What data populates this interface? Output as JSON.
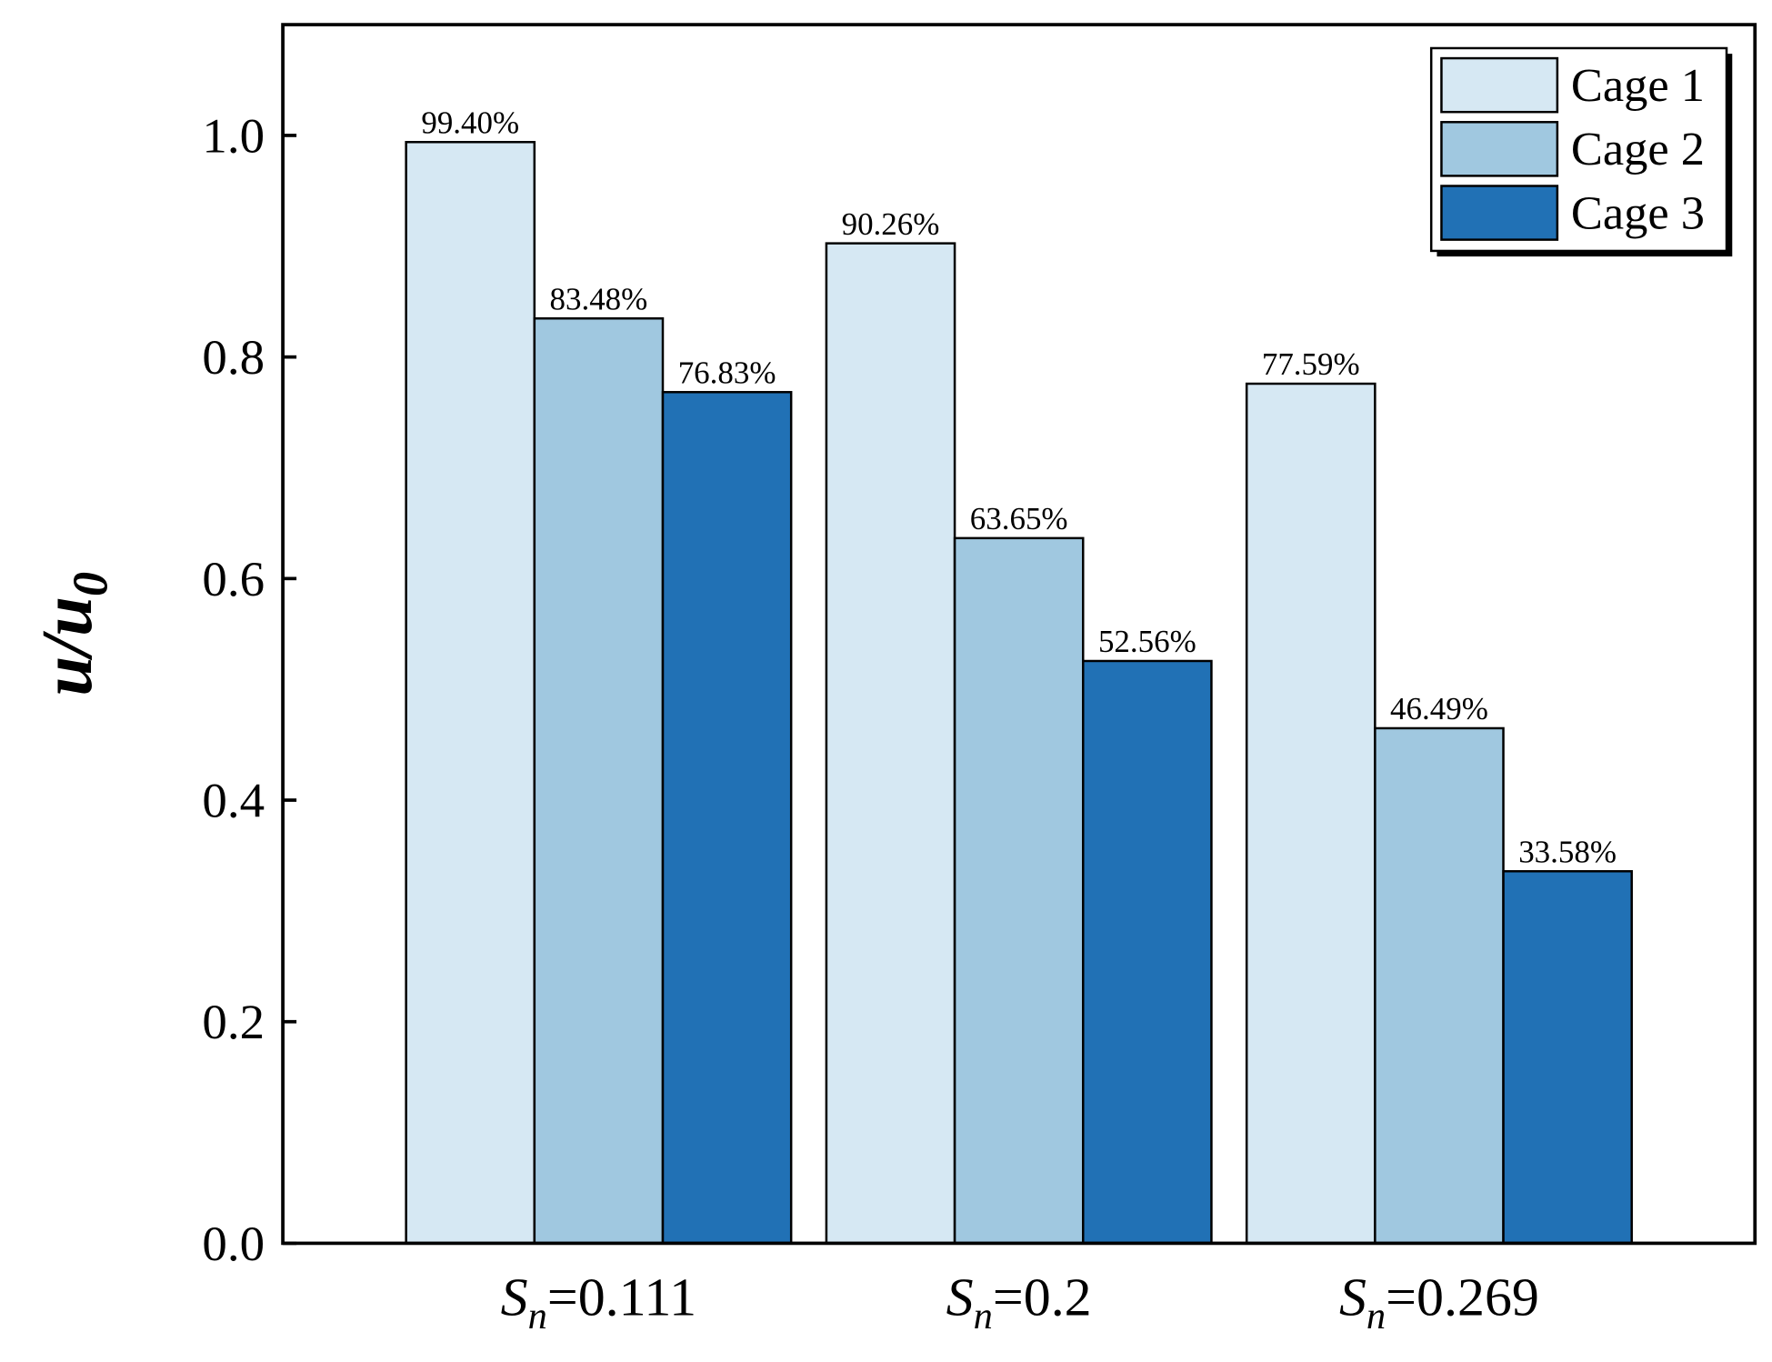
{
  "chart_data": {
    "type": "bar",
    "y_label": "u/u0",
    "categories": [
      "Sn=0.111",
      "Sn=0.2",
      "Sn=0.269"
    ],
    "series": [
      {
        "name": "Cage 1",
        "color": "#d6e8f3",
        "values": [
          0.994,
          0.9026,
          0.7759
        ],
        "value_labels": [
          "99.40%",
          "90.26%",
          "77.59%"
        ]
      },
      {
        "name": "Cage 2",
        "color": "#a0c8e0",
        "values": [
          0.8348,
          0.6365,
          0.4649
        ],
        "value_labels": [
          "83.48%",
          "63.65%",
          "46.49%"
        ]
      },
      {
        "name": "Cage 3",
        "color": "#2171b5",
        "values": [
          0.7683,
          0.5256,
          0.3358
        ],
        "value_labels": [
          "76.83%",
          "52.56%",
          "33.58%"
        ]
      }
    ],
    "ylim": [
      0,
      1.1
    ],
    "yticks": [
      {
        "value": 0,
        "label": "0.0"
      },
      {
        "value": 0.2,
        "label": "0.2"
      },
      {
        "value": 0.4,
        "label": "0.4"
      },
      {
        "value": 0.6,
        "label": "0.6"
      },
      {
        "value": 0.8,
        "label": "0.8"
      },
      {
        "value": 1,
        "label": "1.0"
      }
    ],
    "legend": "upper right"
  }
}
